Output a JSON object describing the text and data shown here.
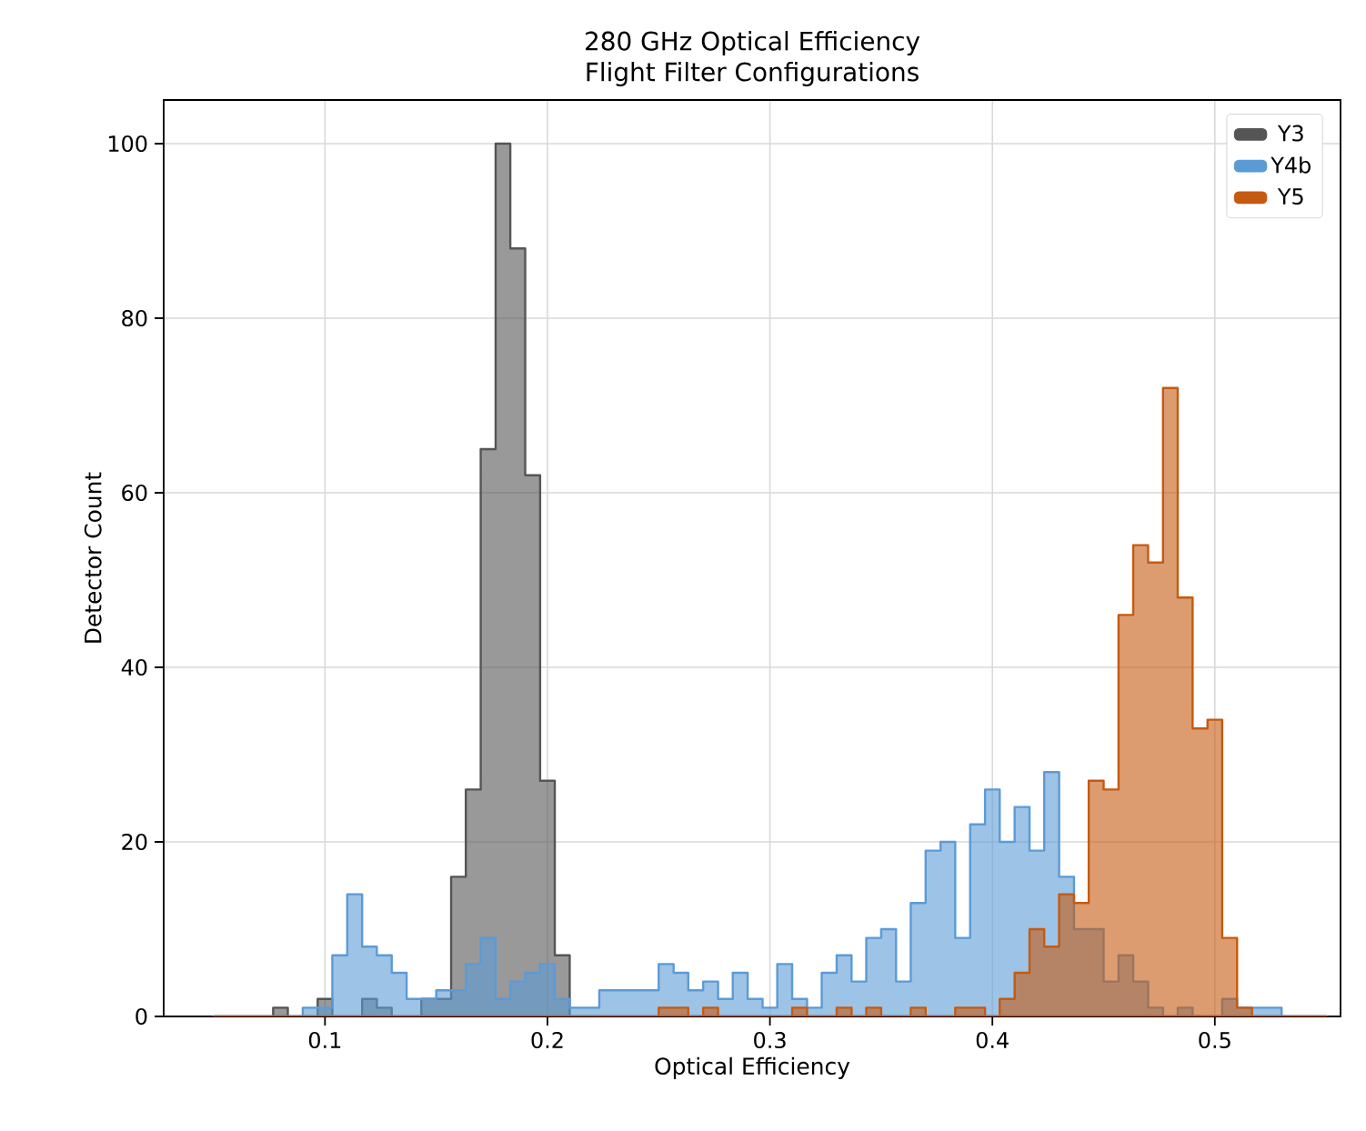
{
  "chart_data": {
    "type": "histogram",
    "title": "280 GHz Optical Efficiency",
    "subtitle": "Flight Filter Configurations",
    "xlabel": "Optical Efficiency",
    "ylabel": "Detector Count",
    "bins": [
      0.05,
      0.0567,
      0.0633,
      0.07,
      0.0767,
      0.0833,
      0.09,
      0.0967,
      0.1033,
      0.11,
      0.1167,
      0.1233,
      0.13,
      0.1367,
      0.1433,
      0.15,
      0.1567,
      0.1633,
      0.17,
      0.1767,
      0.1833,
      0.19,
      0.1967,
      0.2033,
      0.21,
      0.2167,
      0.2233,
      0.23,
      0.2367,
      0.2433,
      0.25,
      0.2567,
      0.2633,
      0.27,
      0.2767,
      0.2833,
      0.29,
      0.2967,
      0.3033,
      0.31,
      0.3167,
      0.3233,
      0.33,
      0.3367,
      0.3433,
      0.35,
      0.3567,
      0.3633,
      0.37,
      0.3767,
      0.3833,
      0.39,
      0.3967,
      0.4033,
      0.41,
      0.4167,
      0.4233,
      0.43,
      0.4367,
      0.4433,
      0.45,
      0.4567,
      0.4633,
      0.47,
      0.4767,
      0.4833,
      0.49,
      0.4967,
      0.5033,
      0.51,
      0.5167,
      0.5233,
      0.53,
      0.5367,
      0.5433,
      0.55
    ],
    "series": [
      {
        "name": "Y3",
        "color": "#555555",
        "values": [
          0,
          0,
          0,
          0,
          1,
          0,
          0,
          2,
          0,
          0,
          2,
          1,
          0,
          0,
          2,
          2,
          16,
          26,
          65,
          100,
          88,
          62,
          27,
          7,
          0,
          0,
          0,
          0,
          0,
          0,
          0,
          0,
          0,
          0,
          0,
          0,
          0,
          0,
          0,
          0,
          0,
          0,
          0,
          0,
          0,
          0,
          0,
          0,
          0,
          0,
          0,
          0,
          0,
          0,
          0,
          0,
          0,
          0,
          0,
          0,
          0,
          0,
          0,
          0,
          0,
          0,
          0,
          0,
          0,
          0,
          0,
          0,
          0,
          0,
          0
        ]
      },
      {
        "name": "Y4b",
        "color": "#5b9bd5",
        "values": [
          0,
          0,
          0,
          0,
          0,
          0,
          1,
          1,
          7,
          14,
          8,
          7,
          5,
          2,
          2,
          3,
          3,
          6,
          9,
          2,
          4,
          5,
          6,
          2,
          1,
          1,
          3,
          3,
          3,
          3,
          6,
          5,
          3,
          4,
          2,
          5,
          2,
          1,
          6,
          2,
          1,
          5,
          7,
          4,
          9,
          10,
          4,
          13,
          19,
          20,
          9,
          22,
          26,
          20,
          24,
          19,
          28,
          16,
          10,
          10,
          4,
          7,
          4,
          1,
          0,
          1,
          0,
          0,
          2,
          1,
          1,
          1,
          0,
          0,
          0
        ]
      },
      {
        "name": "Y5",
        "color": "#c55a11",
        "values": [
          0,
          0,
          0,
          0,
          0,
          0,
          0,
          0,
          0,
          0,
          0,
          0,
          0,
          0,
          0,
          0,
          0,
          0,
          0,
          0,
          0,
          0,
          0,
          0,
          0,
          0,
          0,
          0,
          0,
          0,
          1,
          1,
          0,
          1,
          0,
          0,
          0,
          0,
          0,
          1,
          0,
          0,
          1,
          0,
          1,
          0,
          0,
          1,
          0,
          0,
          1,
          1,
          0,
          2,
          5,
          10,
          8,
          14,
          13,
          27,
          26,
          46,
          54,
          52,
          72,
          48,
          33,
          34,
          9,
          1,
          0,
          0,
          0,
          0,
          0
        ]
      }
    ],
    "xlim": [
      0.0275,
      0.5565
    ],
    "ylim": [
      0,
      105
    ],
    "xticks": [
      0.1,
      0.2,
      0.3,
      0.4,
      0.5
    ],
    "yticks": [
      0,
      20,
      40,
      60,
      80,
      100
    ],
    "grid": true,
    "legend": "top right"
  }
}
